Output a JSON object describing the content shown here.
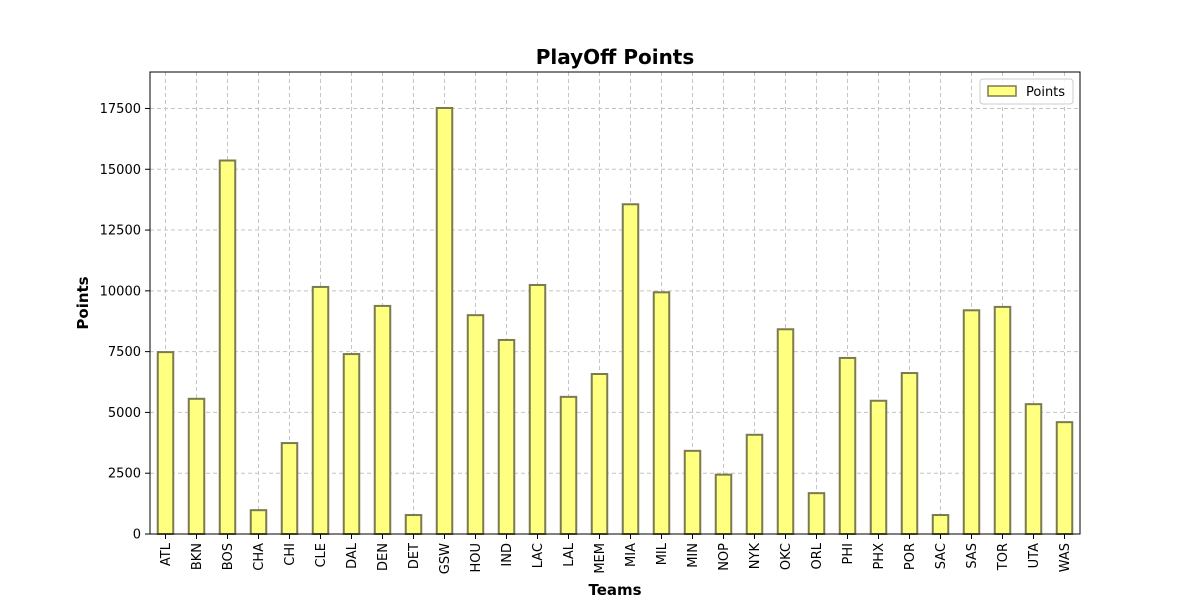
{
  "chart_data": {
    "type": "bar",
    "title": "PlayOff Points",
    "xlabel": "Teams",
    "ylabel": "Points",
    "categories": [
      "ATL",
      "BKN",
      "BOS",
      "CHA",
      "CHI",
      "CLE",
      "DAL",
      "DEN",
      "DET",
      "GSW",
      "HOU",
      "IND",
      "LAC",
      "LAL",
      "MEM",
      "MIA",
      "MIL",
      "MIN",
      "NOP",
      "NYK",
      "OKC",
      "ORL",
      "PHI",
      "PHX",
      "POR",
      "SAC",
      "SAS",
      "TOR",
      "UTA",
      "WAS"
    ],
    "series": [
      {
        "name": "Points",
        "values": [
          7480,
          5560,
          15360,
          980,
          3740,
          10160,
          7400,
          9380,
          780,
          17520,
          9000,
          7980,
          10240,
          5640,
          6580,
          13560,
          9940,
          3420,
          2440,
          4080,
          8420,
          1680,
          7240,
          5480,
          6620,
          780,
          9200,
          9340,
          5340,
          4600
        ]
      }
    ],
    "ylim": [
      0,
      19000
    ],
    "yticks": [
      0,
      2500,
      5000,
      7500,
      10000,
      12500,
      15000,
      17500
    ],
    "grid": true,
    "legend_position": "top-right",
    "colors": {
      "bar_fill": "#ffff80",
      "bar_edge": "#7a7a50"
    }
  }
}
